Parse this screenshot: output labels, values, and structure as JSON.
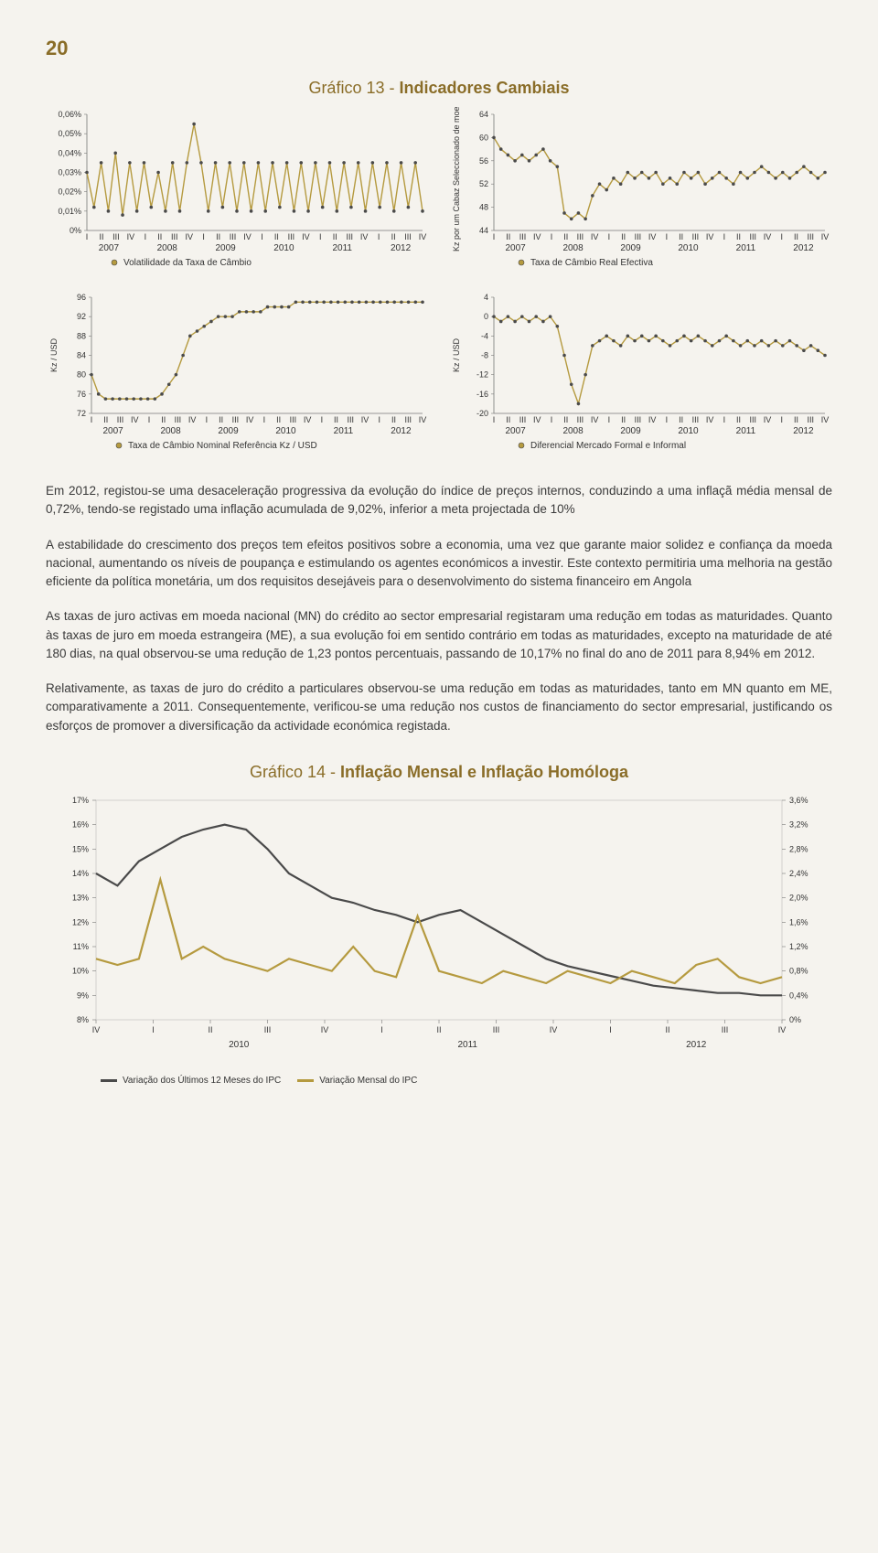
{
  "page_number": "20",
  "grafico13": {
    "title_prefix": "Gráfico 13 - ",
    "title_bold": "Indicadores Cambiais",
    "quarters": [
      "I",
      "II",
      "III",
      "IV"
    ],
    "years": [
      "2007",
      "2008",
      "2009",
      "2010",
      "2011",
      "2012"
    ],
    "line_color": "#b59a3f",
    "marker_color": "#4a4a4a",
    "grid_color": "#bdbdbd",
    "panel_a": {
      "legend": "Volatilidade da Taxa de Câmbio",
      "ylim": [
        0,
        0.06
      ],
      "ytick_labels": [
        "0%",
        "0,01%",
        "0,02%",
        "0,03%",
        "0,04%",
        "0,05%",
        "0,06%"
      ],
      "values": [
        0.03,
        0.012,
        0.035,
        0.01,
        0.04,
        0.008,
        0.035,
        0.01,
        0.035,
        0.012,
        0.03,
        0.01,
        0.035,
        0.01,
        0.035,
        0.055,
        0.035,
        0.01,
        0.035,
        0.012,
        0.035,
        0.01,
        0.035,
        0.01,
        0.035,
        0.01,
        0.035,
        0.012,
        0.035,
        0.01,
        0.035,
        0.01,
        0.035,
        0.012,
        0.035,
        0.01,
        0.035,
        0.012,
        0.035,
        0.01,
        0.035,
        0.012,
        0.035,
        0.01,
        0.035,
        0.012,
        0.035,
        0.01
      ]
    },
    "panel_b": {
      "ylabel": "Kz por um Cabaz Seleccionado de moedas",
      "legend": "Taxa de Câmbio Real Efectiva",
      "ylim": [
        44,
        64
      ],
      "ytick_labels": [
        "44",
        "48",
        "52",
        "56",
        "60",
        "64"
      ],
      "values": [
        60,
        58,
        57,
        56,
        57,
        56,
        57,
        58,
        56,
        55,
        47,
        46,
        47,
        46,
        50,
        52,
        51,
        53,
        52,
        54,
        53,
        54,
        53,
        54,
        52,
        53,
        52,
        54,
        53,
        54,
        52,
        53,
        54,
        53,
        52,
        54,
        53,
        54,
        55,
        54,
        53,
        54,
        53,
        54,
        55,
        54,
        53,
        54
      ]
    },
    "panel_c": {
      "ylabel": "Kz / USD",
      "legend": "Taxa de Câmbio Nominal Referência Kz / USD",
      "ylim": [
        72,
        96
      ],
      "ytick_labels": [
        "72",
        "76",
        "80",
        "84",
        "88",
        "92",
        "96"
      ],
      "values": [
        80,
        76,
        75,
        75,
        75,
        75,
        75,
        75,
        75,
        75,
        76,
        78,
        80,
        84,
        88,
        89,
        90,
        91,
        92,
        92,
        92,
        93,
        93,
        93,
        93,
        94,
        94,
        94,
        94,
        95,
        95,
        95,
        95,
        95,
        95,
        95,
        95,
        95,
        95,
        95,
        95,
        95,
        95,
        95,
        95,
        95,
        95,
        95
      ]
    },
    "panel_d": {
      "ylabel": "Kz / USD",
      "legend": "Diferencial Mercado Formal e Informal",
      "ylim": [
        -20,
        4
      ],
      "ytick_labels": [
        "-20",
        "-16",
        "-12",
        "-8",
        "-4",
        "0",
        "4"
      ],
      "values": [
        0,
        -1,
        0,
        -1,
        0,
        -1,
        0,
        -1,
        0,
        -2,
        -8,
        -14,
        -18,
        -12,
        -6,
        -5,
        -4,
        -5,
        -6,
        -4,
        -5,
        -4,
        -5,
        -4,
        -5,
        -6,
        -5,
        -4,
        -5,
        -4,
        -5,
        -6,
        -5,
        -4,
        -5,
        -6,
        -5,
        -6,
        -5,
        -6,
        -5,
        -6,
        -5,
        -6,
        -7,
        -6,
        -7,
        -8
      ]
    }
  },
  "paragraphs": {
    "p1": "Em 2012, registou-se uma desaceleração progressiva da evolução do índice de preços internos, conduzindo a uma inflaçã média mensal de 0,72%, tendo-se registado uma inflação acumulada de 9,02%, inferior a meta projectada de 10%",
    "p2": "A estabilidade do crescimento dos preços tem efeitos positivos sobre a economia, uma vez que garante maior solidez e confiança da moeda nacional, aumentando os níveis de poupança e estimulando os agentes económicos a investir. Este contexto permitiria uma melhoria na gestão eficiente da política monetária, um dos requisitos desejáveis para o desenvolvimento do sistema financeiro em Angola",
    "p3": "As taxas de juro activas em moeda nacional (MN) do crédito ao sector empresarial registaram uma redução em todas as maturidades. Quanto às taxas de juro em moeda estrangeira (ME), a sua evolução foi em sentido contrário em todas as maturidades, excepto na maturidade de até 180 dias, na qual observou-se uma redução de 1,23 pontos percentuais, passando de 10,17% no final do ano de 2011 para 8,94% em 2012.",
    "p4": "Relativamente, as taxas de juro do crédito a particulares observou-se uma redução em todas as maturidades, tanto em MN quanto em ME, comparativamente a 2011. Consequentemente, verificou-se uma redução nos custos de financiamento do sector empresarial, justificando os esforços de promover a diversificação da actividade económica registada."
  },
  "grafico14": {
    "title_prefix": "Gráfico 14 - ",
    "title_bold": "Inflação Mensal e Inflação Homóloga",
    "quarters": [
      "IV",
      "I",
      "II",
      "III",
      "IV",
      "I",
      "II",
      "III",
      "IV",
      "I",
      "II",
      "III",
      "IV"
    ],
    "years": [
      "2010",
      "2011",
      "2012"
    ],
    "left_ylim": [
      8,
      17
    ],
    "left_ytick_labels": [
      "8%",
      "9%",
      "10%",
      "11%",
      "12%",
      "13%",
      "14%",
      "15%",
      "16%",
      "17%"
    ],
    "right_ylim": [
      0,
      3.6
    ],
    "right_ytick_labels": [
      "0%",
      "0,4%",
      "0,8%",
      "1,2%",
      "1,6%",
      "2,0%",
      "2,4%",
      "2,8%",
      "3,2%",
      "3,6%"
    ],
    "series12m": {
      "label": "Variação dos Últimos 12 Meses do IPC",
      "color": "#4a4a4a",
      "values": [
        14.0,
        13.5,
        14.5,
        15.0,
        15.5,
        15.8,
        16.0,
        15.8,
        15.0,
        14.0,
        13.5,
        13.0,
        12.8,
        12.5,
        12.3,
        12.0,
        12.3,
        12.5,
        12.0,
        11.5,
        11.0,
        10.5,
        10.2,
        10.0,
        9.8,
        9.6,
        9.4,
        9.3,
        9.2,
        9.1,
        9.1,
        9.0,
        9.0
      ]
    },
    "seriesMensal": {
      "label": "Variação Mensal do IPC",
      "color": "#b59a3f",
      "values": [
        1.0,
        0.9,
        1.0,
        2.3,
        1.0,
        1.2,
        1.0,
        0.9,
        0.8,
        1.0,
        0.9,
        0.8,
        1.2,
        0.8,
        0.7,
        1.7,
        0.8,
        0.7,
        0.6,
        0.8,
        0.7,
        0.6,
        0.8,
        0.7,
        0.6,
        0.8,
        0.7,
        0.6,
        0.9,
        1.0,
        0.7,
        0.6,
        0.7
      ]
    }
  }
}
